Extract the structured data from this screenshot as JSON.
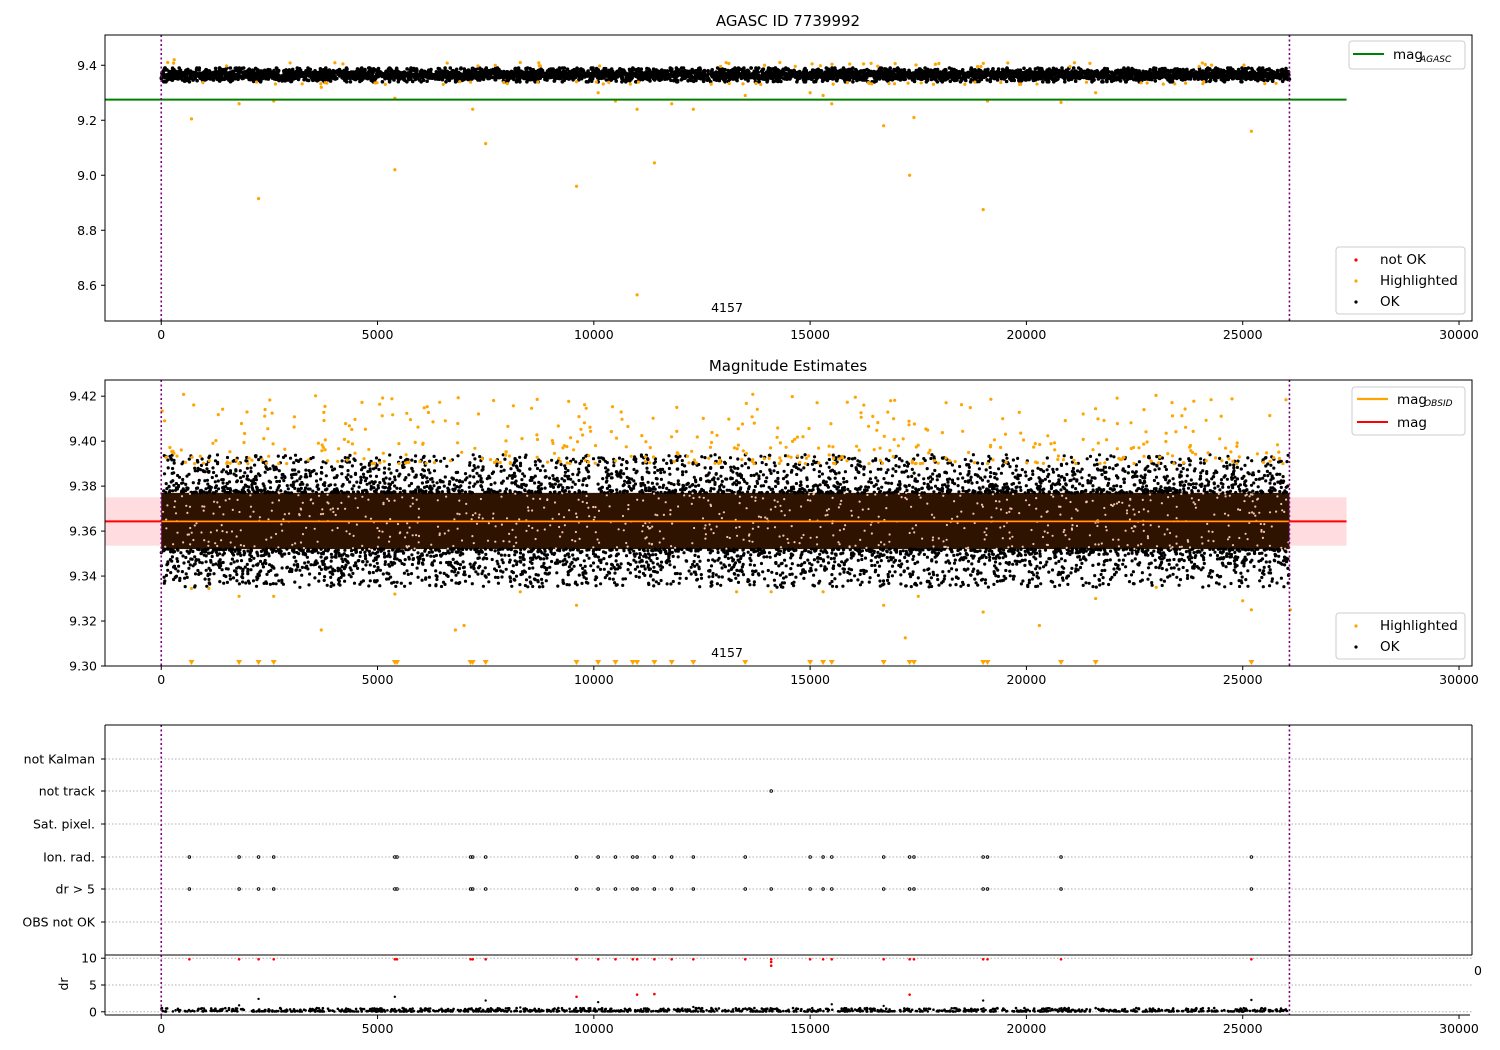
{
  "colors": {
    "ok": "#000000",
    "highlighted": "#ffa500",
    "not_ok": "#ff0000",
    "mag_agasc": "#008000",
    "mag": "#ff0000",
    "mag_obsid": "#ffa500",
    "obs_boundary": "#800080",
    "band_fill": "#ffd0d4",
    "dense_band": "#2e1400",
    "grid": "#b0b0b0"
  },
  "chart_data": [
    {
      "id": "top",
      "type": "scatter",
      "title": "AGASC ID 7739992",
      "xlim": [
        -1300,
        30300
      ],
      "ylim": [
        8.47,
        9.51
      ],
      "xticks": [
        0,
        5000,
        10000,
        15000,
        20000,
        25000,
        30000
      ],
      "yticks": [
        8.6,
        8.8,
        9.0,
        9.2,
        9.4
      ],
      "ytick_labels": [
        "8.6",
        "8.8",
        "9.0",
        "9.2",
        "9.4"
      ],
      "obs_boundaries": [
        0,
        26080
      ],
      "obsid_label": "4157",
      "legend_lines": [
        {
          "label": "mag",
          "subscript": "AGASC",
          "color": "#008000"
        }
      ],
      "legend_points": [
        {
          "label": "not OK",
          "color": "#ff0000"
        },
        {
          "label": "Highlighted",
          "color": "#ffa500"
        },
        {
          "label": "OK",
          "color": "#000000"
        }
      ],
      "hlines": [
        {
          "name": "mag_AGASC",
          "y": 9.275,
          "x0": -1300,
          "x1": 27400
        }
      ],
      "ok_band": {
        "x0": 0,
        "x1": 26080,
        "y0": 9.34,
        "y1": 9.39
      },
      "highlighted_points": [
        [
          150,
          9.41
        ],
        [
          300,
          9.42
        ],
        [
          700,
          9.205
        ],
        [
          1800,
          9.26
        ],
        [
          2250,
          8.915
        ],
        [
          2600,
          9.27
        ],
        [
          3700,
          9.32
        ],
        [
          5400,
          9.02
        ],
        [
          5400,
          9.28
        ],
        [
          6900,
          9.34
        ],
        [
          7200,
          9.24
        ],
        [
          7500,
          9.115
        ],
        [
          9600,
          8.96
        ],
        [
          9600,
          9.34
        ],
        [
          10100,
          9.3
        ],
        [
          10500,
          9.27
        ],
        [
          11000,
          8.565
        ],
        [
          11000,
          9.24
        ],
        [
          11400,
          9.045
        ],
        [
          11800,
          9.26
        ],
        [
          12300,
          9.24
        ],
        [
          13500,
          9.29
        ],
        [
          15000,
          9.3
        ],
        [
          15300,
          9.29
        ],
        [
          15500,
          9.26
        ],
        [
          16700,
          9.18
        ],
        [
          17300,
          9.0
        ],
        [
          17400,
          9.21
        ],
        [
          19000,
          8.875
        ],
        [
          19100,
          9.27
        ],
        [
          20800,
          9.265
        ],
        [
          21600,
          9.3
        ],
        [
          25200,
          9.16
        ],
        [
          4200,
          9.405
        ],
        [
          8300,
          9.41
        ],
        [
          14300,
          9.41
        ]
      ]
    },
    {
      "id": "middle",
      "type": "scatter",
      "title": "Magnitude Estimates",
      "xlim": [
        -1300,
        30300
      ],
      "ylim": [
        9.3,
        9.4272
      ],
      "xticks": [
        0,
        5000,
        10000,
        15000,
        20000,
        25000,
        30000
      ],
      "yticks": [
        9.3,
        9.32,
        9.34,
        9.36,
        9.38,
        9.4,
        9.42
      ],
      "ytick_labels": [
        "9.30",
        "9.32",
        "9.34",
        "9.36",
        "9.38",
        "9.40",
        "9.42"
      ],
      "obs_boundaries": [
        0,
        26080
      ],
      "obsid_label": "4157",
      "legend_lines": [
        {
          "label": "mag",
          "subscript": "OBSID",
          "color": "#ffa500"
        },
        {
          "label": "mag",
          "subscript": "",
          "color": "#ff0000"
        }
      ],
      "legend_points": [
        {
          "label": "Highlighted",
          "color": "#ffa500"
        },
        {
          "label": "OK",
          "color": "#000000"
        }
      ],
      "hlines": [
        {
          "name": "mag",
          "y": 9.3643,
          "x0": -1300,
          "x1": 27400
        },
        {
          "name": "mag_OBSID",
          "y": 9.3643,
          "x0": 0,
          "x1": 26080
        }
      ],
      "band": {
        "x0": -1300,
        "x1": 27400,
        "y0": 9.3535,
        "y1": 9.375
      },
      "dense_band": {
        "x0": 0,
        "x1": 26080,
        "y0": 9.352,
        "y1": 9.377
      },
      "ok_spread": {
        "y0": 9.335,
        "y1": 9.394
      },
      "highlighted_y_range": [
        9.39,
        9.421
      ],
      "highlighted_low_points": [
        [
          700,
          9.3345
        ],
        [
          1100,
          9.3345
        ],
        [
          1800,
          9.331
        ],
        [
          2600,
          9.331
        ],
        [
          3700,
          9.316
        ],
        [
          5400,
          9.332
        ],
        [
          6800,
          9.316
        ],
        [
          7000,
          9.318
        ],
        [
          8300,
          9.333
        ],
        [
          9600,
          9.327
        ],
        [
          13300,
          9.333
        ],
        [
          14100,
          9.333
        ],
        [
          15300,
          9.333
        ],
        [
          16700,
          9.327
        ],
        [
          17500,
          9.331
        ],
        [
          19000,
          9.324
        ],
        [
          20300,
          9.318
        ],
        [
          21600,
          9.33
        ],
        [
          23000,
          9.335
        ],
        [
          25000,
          9.329
        ],
        [
          25200,
          9.325
        ],
        [
          26100,
          9.325
        ],
        [
          17200,
          9.3125
        ]
      ],
      "clipped_markers_x": [
        700,
        1800,
        2250,
        2600,
        5400,
        5450,
        7150,
        7200,
        7500,
        9600,
        10100,
        10500,
        10900,
        11000,
        11400,
        11800,
        12300,
        13500,
        15000,
        15300,
        15500,
        16700,
        17300,
        17400,
        19000,
        19100,
        20800,
        21600,
        25200
      ]
    },
    {
      "id": "flags",
      "type": "scatter",
      "xlim": [
        -1300,
        30300
      ],
      "categories": [
        "not Kalman",
        "not track",
        "Sat. pixel.",
        "Ion. rad.",
        "dr > 5",
        "OBS not OK"
      ],
      "obs_boundaries": [
        0,
        26080
      ],
      "flag_points": {
        "not Kalman": [],
        "not track": [
          14100
        ],
        "Sat. pixel.": [],
        "Ion. rad.": [
          650,
          1800,
          2250,
          2600,
          5400,
          5450,
          7150,
          7200,
          7500,
          9600,
          10100,
          10500,
          10900,
          11000,
          11400,
          11800,
          12300,
          13500,
          15000,
          15300,
          15500,
          16700,
          17300,
          17400,
          19000,
          19100,
          20800,
          25200
        ],
        "dr > 5": [
          650,
          1800,
          2250,
          2600,
          5400,
          5450,
          7150,
          7200,
          7500,
          9600,
          10100,
          10500,
          10900,
          11000,
          11400,
          11800,
          12300,
          13500,
          14100,
          15000,
          15300,
          15500,
          16700,
          17300,
          17400,
          19000,
          19100,
          20800,
          25200
        ],
        "OBS not OK": []
      }
    },
    {
      "id": "dr",
      "type": "scatter",
      "ylabel": "dr",
      "xlim": [
        -1300,
        30300
      ],
      "ylim": [
        -0.6,
        10.6
      ],
      "xticks": [
        0,
        5000,
        10000,
        15000,
        20000,
        25000,
        30000
      ],
      "yticks": [
        0,
        5,
        10
      ],
      "obs_boundaries": [
        0,
        26080
      ],
      "clipped_label": "0",
      "not_ok_points": [
        [
          650,
          9.8
        ],
        [
          1800,
          9.8
        ],
        [
          2250,
          9.8
        ],
        [
          2600,
          9.8
        ],
        [
          5400,
          9.8
        ],
        [
          5450,
          9.8
        ],
        [
          7150,
          9.8
        ],
        [
          7200,
          9.8
        ],
        [
          7500,
          9.8
        ],
        [
          9600,
          9.8
        ],
        [
          10100,
          9.8
        ],
        [
          10500,
          9.8
        ],
        [
          10900,
          9.8
        ],
        [
          11000,
          9.8
        ],
        [
          11400,
          9.8
        ],
        [
          11800,
          9.8
        ],
        [
          12300,
          9.8
        ],
        [
          13500,
          9.8
        ],
        [
          14100,
          9.8
        ],
        [
          14100,
          9.3
        ],
        [
          14100,
          8.6
        ],
        [
          15000,
          9.8
        ],
        [
          15300,
          9.8
        ],
        [
          15500,
          9.8
        ],
        [
          16700,
          9.8
        ],
        [
          17300,
          9.8
        ],
        [
          17400,
          9.8
        ],
        [
          19000,
          9.8
        ],
        [
          19100,
          9.8
        ],
        [
          20800,
          9.8
        ],
        [
          25200,
          9.8
        ],
        [
          9600,
          2.8
        ],
        [
          11000,
          3.2
        ],
        [
          11400,
          3.3
        ],
        [
          17300,
          3.2
        ]
      ],
      "ok_outliers": [
        [
          1800,
          1.2
        ],
        [
          2250,
          2.4
        ],
        [
          5400,
          2.8
        ],
        [
          7500,
          2.1
        ],
        [
          10100,
          1.8
        ],
        [
          12300,
          0.9
        ],
        [
          15500,
          1.4
        ],
        [
          16700,
          1.1
        ],
        [
          19000,
          2.1
        ],
        [
          25200,
          2.2
        ],
        [
          8300,
          0.8
        ],
        [
          20500,
          0.7
        ]
      ],
      "ok_base": {
        "y0": 0.05,
        "y1": 0.7
      }
    }
  ]
}
